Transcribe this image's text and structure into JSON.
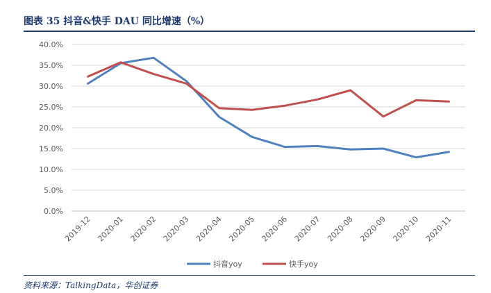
{
  "figure": {
    "title": "图表 35   抖音&快手 DAU 同比增速（%）",
    "source": "资料来源：TalkingData，华创证券"
  },
  "chart_data": {
    "type": "line",
    "title": "",
    "xlabel": "",
    "ylabel": "",
    "categories": [
      "2019-12",
      "2020-01",
      "2020-02",
      "2020-03",
      "2020-04",
      "2020-05",
      "2020-06",
      "2020-07",
      "2020-08",
      "2020-09",
      "2020-10",
      "2020-11"
    ],
    "ylim": [
      0,
      40
    ],
    "yticks": [
      "0.0%",
      "5.0%",
      "10.0%",
      "15.0%",
      "20.0%",
      "25.0%",
      "30.0%",
      "35.0%",
      "40.0%"
    ],
    "grid": true,
    "legend": "bottom",
    "series": [
      {
        "name": "抖音yoy",
        "color": "#4f81bd",
        "values": [
          30.6,
          35.5,
          36.8,
          31.2,
          22.6,
          17.8,
          15.4,
          15.6,
          14.8,
          15.0,
          12.9,
          14.2
        ]
      },
      {
        "name": "快手yoy",
        "color": "#c0504d",
        "values": [
          32.3,
          35.7,
          32.9,
          30.6,
          24.7,
          24.3,
          25.3,
          26.8,
          29.0,
          22.7,
          26.6,
          26.3
        ]
      }
    ]
  }
}
